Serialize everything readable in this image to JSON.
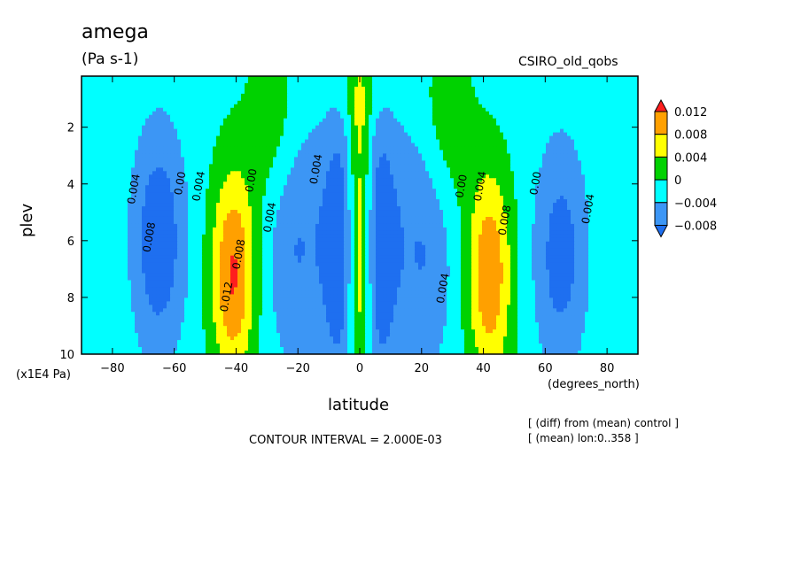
{
  "chart_data": {
    "type": "heatmap",
    "title": "amega",
    "units": "(Pa s-1)",
    "model_label": "CSIRO_old_qobs",
    "xlabel": "latitude",
    "x_units": "(degrees_north)",
    "ylabel": "plev",
    "y_units": "(x1E4 Pa)",
    "xlim": [
      -90,
      90
    ],
    "ylim": [
      10,
      0.2
    ],
    "x_ticks": [
      -80,
      -60,
      -40,
      -20,
      0,
      20,
      40,
      60,
      80
    ],
    "y_ticks": [
      2,
      4,
      6,
      8,
      10
    ],
    "contour_interval_text": "CONTOUR INTERVAL = 2.000E-03",
    "notes": [
      "[ (diff) from (mean) control ]",
      "[ (mean) lon:0..358 ]"
    ],
    "colorbar": {
      "labels": [
        "0.012",
        "0.008",
        "0.004",
        "0",
        "−0.004",
        "−0.008"
      ],
      "bins": [
        {
          "min": -0.012,
          "max": -0.008,
          "color": "#1e6ff0"
        },
        {
          "min": -0.008,
          "max": -0.004,
          "color": "#3c96f5"
        },
        {
          "min": -0.004,
          "max": 0.0,
          "color": "#00ffff"
        },
        {
          "min": 0.0,
          "max": 0.004,
          "color": "#00d200"
        },
        {
          "min": 0.004,
          "max": 0.008,
          "color": "#ffff00"
        },
        {
          "min": 0.008,
          "max": 0.012,
          "color": "#ffa000"
        },
        {
          "min": 0.012,
          "max": 0.016,
          "color": "#ff1e1e"
        }
      ],
      "low_extension_color": "#1e6ff0",
      "high_extension_color": "#ff1e1e"
    },
    "contour_labels": [
      {
        "text": "0.004",
        "lat": -72,
        "plev": 4.2
      },
      {
        "text": "0.008",
        "lat": -67,
        "plev": 5.9
      },
      {
        "text": "0.00",
        "lat": -57,
        "plev": 4.0
      },
      {
        "text": "0.004",
        "lat": -51,
        "plev": 4.1
      },
      {
        "text": "0.00",
        "lat": -34,
        "plev": 3.9
      },
      {
        "text": "0.004",
        "lat": -28,
        "plev": 5.2
      },
      {
        "text": "0.008",
        "lat": -38,
        "plev": 6.5
      },
      {
        "text": "0.012",
        "lat": -42,
        "plev": 8.0
      },
      {
        "text": "0.004",
        "lat": 28,
        "plev": 7.7
      },
      {
        "text": "0.00",
        "lat": 34,
        "plev": 4.1
      },
      {
        "text": "0.004",
        "lat": 40,
        "plev": 4.1
      },
      {
        "text": "0.008",
        "lat": 48,
        "plev": 5.3
      },
      {
        "text": "0.00",
        "lat": 58,
        "plev": 4.0
      },
      {
        "text": "0.004",
        "lat": 75,
        "plev": 4.9
      },
      {
        "text": "0.004",
        "lat": -13,
        "plev": 3.5
      }
    ]
  }
}
